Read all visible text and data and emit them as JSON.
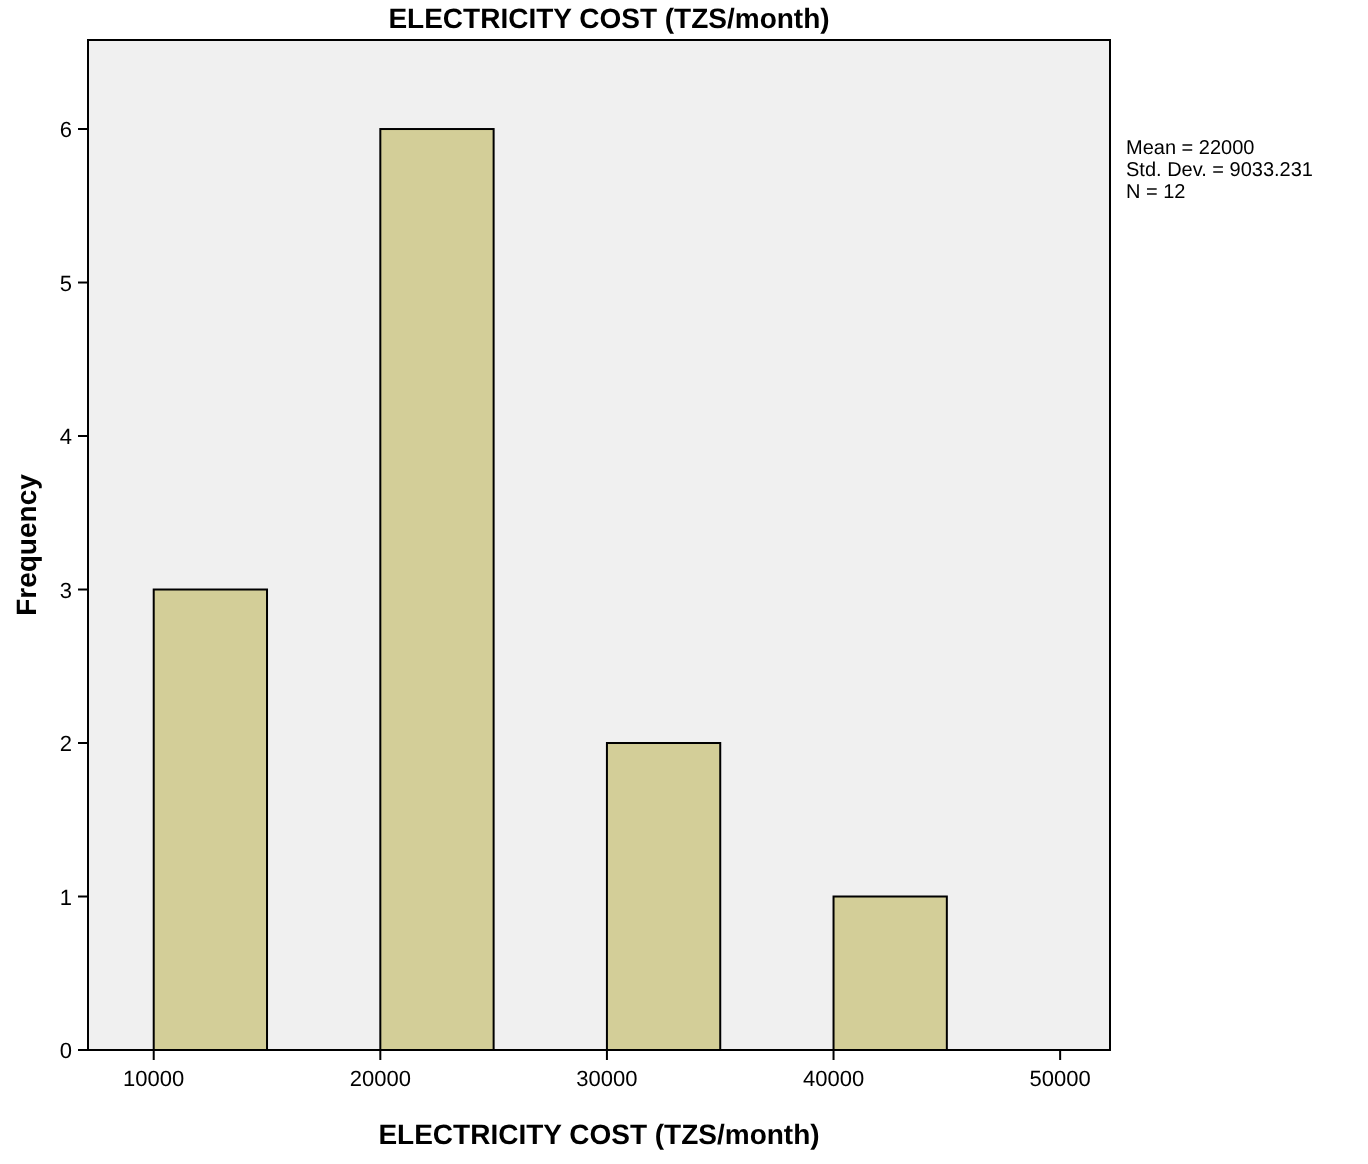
{
  "chart_data": {
    "type": "histogram",
    "title": "ELECTRICITY COST (TZS/month)",
    "xlabel": "ELECTRICITY COST (TZS/month)",
    "ylabel": "Frequency",
    "bins": [
      10000,
      15000,
      20000,
      25000,
      30000,
      35000,
      40000,
      45000
    ],
    "values": [
      3,
      0,
      6,
      0,
      2,
      0,
      1
    ],
    "color": "#d3ce98",
    "xlim": [
      7100,
      52200
    ],
    "xticks": [
      10000,
      20000,
      30000,
      40000,
      50000
    ],
    "ylim": [
      0,
      6.58
    ],
    "yticks": [
      0,
      1,
      2,
      3,
      4,
      5,
      6
    ],
    "annotations": [
      "Mean = 22000",
      "Std. Dev. = 9033.231",
      "N = 12"
    ],
    "grid": false
  }
}
